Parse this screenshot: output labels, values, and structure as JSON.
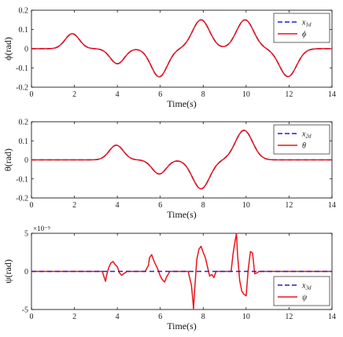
{
  "chart_data": [
    {
      "type": "line",
      "xlabel": "Time(s)",
      "ylabel": "ϕ(rad)",
      "xlim": [
        0,
        14
      ],
      "ylim": [
        -0.2,
        0.2
      ],
      "xticks": [
        "0",
        "2",
        "4",
        "6",
        "8",
        "10",
        "12",
        "14"
      ],
      "yticks": [
        "0.2",
        "0.1",
        "0",
        "-0.1",
        "-0.2"
      ],
      "legend_position": "top-right",
      "grid": false,
      "series": [
        {
          "name": "x1d",
          "legend_base": "x",
          "legend_sub": "1d",
          "color": "#1f1fd6",
          "dash": "dashed",
          "bumps": [
            [
              1.9,
              0.078,
              0.33
            ],
            [
              4.0,
              -0.078,
              0.33
            ],
            [
              5.95,
              -0.146,
              0.38
            ],
            [
              7.9,
              0.15,
              0.4
            ],
            [
              9.95,
              0.15,
              0.4
            ],
            [
              11.95,
              -0.145,
              0.4
            ]
          ]
        },
        {
          "name": "ϕ",
          "legend_base": "ϕ",
          "legend_sub": "",
          "color": "#e8141a",
          "dash": "solid",
          "bumps": [
            [
              1.9,
              0.078,
              0.33
            ],
            [
              4.0,
              -0.078,
              0.33
            ],
            [
              5.95,
              -0.146,
              0.38
            ],
            [
              7.9,
              0.15,
              0.4
            ],
            [
              9.95,
              0.15,
              0.4
            ],
            [
              11.95,
              -0.145,
              0.4
            ]
          ]
        }
      ]
    },
    {
      "type": "line",
      "xlabel": "Time(s)",
      "ylabel": "θ(rad)",
      "xlim": [
        0,
        14
      ],
      "ylim": [
        -0.2,
        0.2
      ],
      "xticks": [
        "0",
        "2",
        "4",
        "6",
        "8",
        "10",
        "12",
        "14"
      ],
      "yticks": [
        "0.2",
        "0.1",
        "0",
        "-0.1",
        "-0.2"
      ],
      "legend_position": "top-right",
      "grid": false,
      "series": [
        {
          "name": "x2d",
          "legend_base": "x",
          "legend_sub": "2d",
          "color": "#1f1fd6",
          "dash": "dashed",
          "bumps": [
            [
              3.95,
              0.077,
              0.33
            ],
            [
              5.95,
              -0.074,
              0.33
            ],
            [
              7.9,
              -0.152,
              0.4
            ],
            [
              9.9,
              0.155,
              0.4
            ]
          ]
        },
        {
          "name": "θ",
          "legend_base": "θ",
          "legend_sub": "",
          "color": "#e8141a",
          "dash": "solid",
          "bumps": [
            [
              3.95,
              0.077,
              0.33
            ],
            [
              5.95,
              -0.074,
              0.33
            ],
            [
              7.9,
              -0.152,
              0.4
            ],
            [
              9.9,
              0.155,
              0.4
            ]
          ]
        }
      ]
    },
    {
      "type": "line",
      "xlabel": "Time(s)",
      "ylabel": "ψ(rad)",
      "xlim": [
        0,
        14
      ],
      "ylim": [
        -5,
        5
      ],
      "y_multiplier": "×10⁻⁵",
      "xticks": [
        "0",
        "2",
        "4",
        "6",
        "8",
        "10",
        "12",
        "14"
      ],
      "yticks": [
        "5",
        "0",
        "-5"
      ],
      "legend_position": "bottom-right",
      "grid": false,
      "series": [
        {
          "name": "x3d",
          "legend_base": "x",
          "legend_sub": "3d",
          "color": "#1f1fd6",
          "dash": "dashed",
          "x": [
            0,
            14
          ],
          "y": [
            0,
            0
          ]
        },
        {
          "name": "ψ",
          "legend_base": "ψ",
          "legend_sub": "",
          "color": "#e8141a",
          "dash": "solid",
          "x": [
            0,
            3.3,
            3.45,
            3.5,
            3.6,
            3.7,
            3.8,
            3.9,
            4.0,
            4.1,
            4.2,
            4.3,
            4.4,
            4.45,
            5.3,
            5.45,
            5.5,
            5.6,
            5.7,
            5.8,
            5.9,
            6.0,
            6.1,
            6.2,
            6.3,
            6.45,
            7.3,
            7.45,
            7.5,
            7.55,
            7.6,
            7.7,
            7.8,
            7.9,
            8.0,
            8.1,
            8.2,
            8.3,
            8.4,
            8.5,
            8.6,
            9.3,
            9.4,
            9.5,
            9.55,
            9.6,
            9.7,
            9.8,
            9.9,
            10.0,
            10.1,
            10.2,
            10.3,
            10.4,
            10.5,
            10.6,
            14
          ],
          "y": [
            0,
            0,
            -1.3,
            -0.5,
            0.5,
            1.1,
            1.3,
            0.9,
            0.6,
            -0.2,
            -0.5,
            -0.3,
            -0.1,
            0,
            0,
            0.8,
            1.8,
            2.2,
            1.4,
            0.8,
            0.2,
            -0.6,
            -1.1,
            -1.4,
            -0.7,
            0,
            0,
            -1.8,
            -3.2,
            -4.9,
            -2.5,
            1.5,
            2.9,
            3.3,
            2.5,
            1.8,
            0.6,
            -0.6,
            -0.4,
            -0.8,
            0,
            0,
            2.5,
            4.2,
            5.0,
            2.2,
            -1.2,
            -2.6,
            -3.0,
            -3.2,
            0.3,
            2.6,
            2.4,
            -0.3,
            -0.2,
            0,
            0
          ]
        }
      ]
    }
  ]
}
